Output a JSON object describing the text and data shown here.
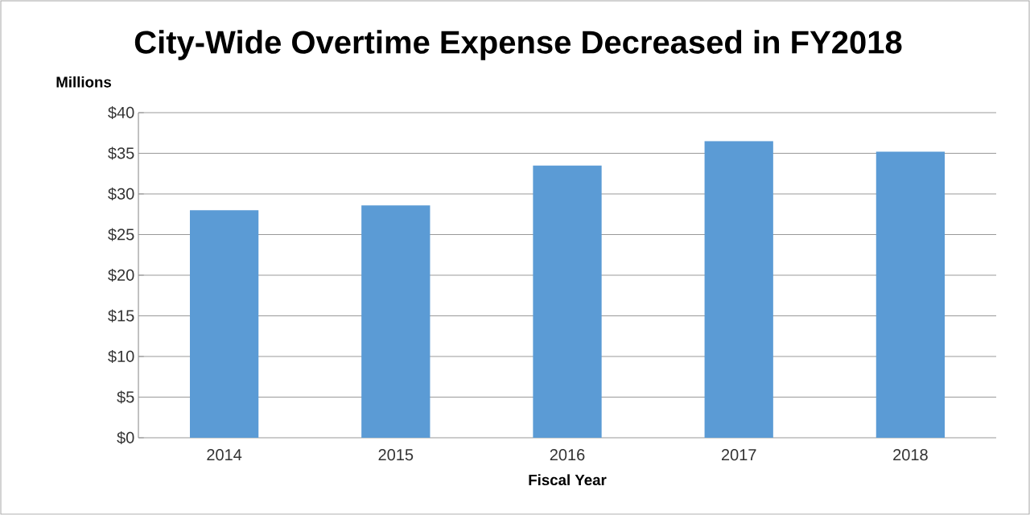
{
  "chart_data": {
    "type": "bar",
    "title": "City-Wide Overtime Expense Decreased in FY2018",
    "ylabel": "Millions",
    "xlabel": "Fiscal Year",
    "categories": [
      "2014",
      "2015",
      "2016",
      "2017",
      "2018"
    ],
    "values": [
      28.0,
      28.6,
      33.5,
      36.5,
      35.2
    ],
    "color": "#5b9bd5",
    "ylim": [
      0,
      40
    ],
    "yticks": [
      {
        "value": 0,
        "label": "$0"
      },
      {
        "value": 5,
        "label": "$5"
      },
      {
        "value": 10,
        "label": "$10"
      },
      {
        "value": 15,
        "label": "$15"
      },
      {
        "value": 20,
        "label": "$20"
      },
      {
        "value": 25,
        "label": "$25"
      },
      {
        "value": 30,
        "label": "$30"
      },
      {
        "value": 35,
        "label": "$35"
      },
      {
        "value": 40,
        "label": "$40"
      }
    ],
    "grid": "y"
  }
}
